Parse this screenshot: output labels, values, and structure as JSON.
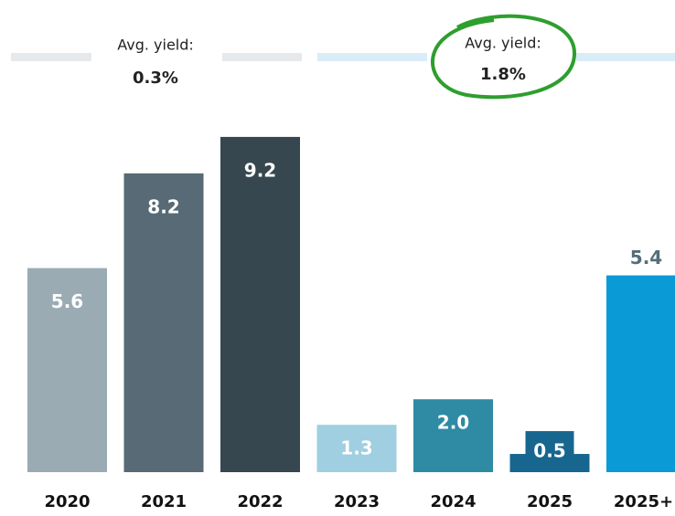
{
  "chart_data": {
    "type": "bar",
    "categories": [
      "2020",
      "2021",
      "2022",
      "2023",
      "2024",
      "2025",
      "2025+"
    ],
    "values": [
      5.6,
      8.2,
      9.2,
      1.3,
      2.0,
      0.5,
      5.4
    ],
    "value_labels": [
      "5.6",
      "8.2",
      "9.2",
      "1.3",
      "2.0",
      "0.5",
      "5.4"
    ],
    "colors": [
      "#9aabb3",
      "#576a75",
      "#37474f",
      "#9fcfe0",
      "#2f8aa3",
      "#17668f",
      "#0a9ad6"
    ],
    "annotations": [
      {
        "label": "Avg. yield:",
        "value": "0.3%"
      },
      {
        "label": "Avg. yield:",
        "value": "1.8%"
      }
    ]
  }
}
